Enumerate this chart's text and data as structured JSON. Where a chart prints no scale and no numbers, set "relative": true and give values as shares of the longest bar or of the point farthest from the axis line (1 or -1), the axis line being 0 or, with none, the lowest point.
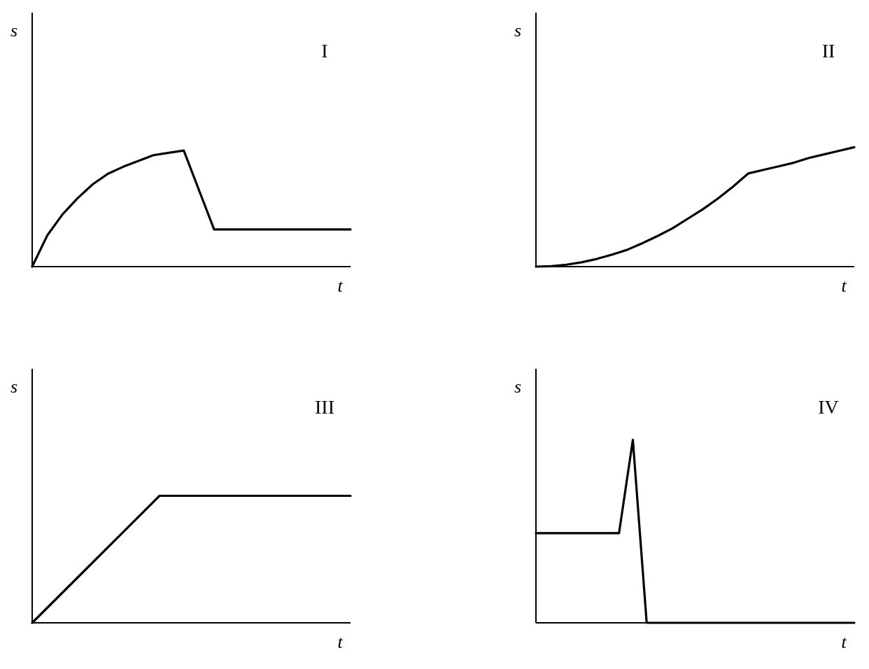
{
  "chart_data": [
    {
      "type": "line",
      "title": "I",
      "xlabel": "t",
      "ylabel": "s",
      "relative": true,
      "color": "#000000",
      "categories": [
        null,
        null,
        null,
        null,
        null,
        null,
        null,
        null,
        null,
        null,
        null,
        null,
        null,
        null,
        null,
        null,
        null,
        null,
        null,
        null,
        null,
        null
      ],
      "values": [
        0,
        0.27,
        0.45,
        0.59,
        0.71,
        0.8,
        0.86,
        0.91,
        0.96,
        0.98,
        1,
        0.66,
        0.32,
        0.32,
        0.32,
        0.32,
        0.32,
        0.32,
        0.32,
        0.32,
        0.32,
        0.32
      ]
    },
    {
      "type": "line",
      "title": "II",
      "xlabel": "t",
      "ylabel": "s",
      "relative": true,
      "color": "#000000",
      "categories": [
        null,
        null,
        null,
        null,
        null,
        null,
        null,
        null,
        null,
        null,
        null,
        null,
        null,
        null,
        null,
        null,
        null,
        null,
        null,
        null,
        null,
        null
      ],
      "values": [
        0,
        0.004,
        0.016,
        0.036,
        0.064,
        0.1,
        0.14,
        0.195,
        0.255,
        0.32,
        0.4,
        0.48,
        0.57,
        0.67,
        0.78,
        0.81,
        0.84,
        0.87,
        0.91,
        0.94,
        0.97,
        1
      ]
    },
    {
      "type": "line",
      "title": "III",
      "xlabel": "t",
      "ylabel": "s",
      "relative": true,
      "color": "#000000",
      "categories": [
        null,
        null,
        null,
        null,
        null,
        null
      ],
      "values": [
        0,
        0.5,
        1,
        1,
        1,
        1
      ]
    },
    {
      "type": "line",
      "title": "IV",
      "xlabel": "t",
      "ylabel": "s",
      "relative": true,
      "color": "#000000",
      "categories": [
        null,
        null,
        null,
        null,
        null,
        null,
        null,
        null,
        null,
        null,
        null,
        null,
        null,
        null,
        null,
        null,
        null,
        null,
        null,
        null,
        null,
        null,
        null,
        null
      ],
      "values": [
        0.49,
        0.49,
        0.49,
        0.49,
        0.49,
        0.49,
        0.49,
        1,
        0,
        0,
        0,
        0,
        0,
        0,
        0,
        0,
        0,
        0,
        0,
        0,
        0,
        0,
        0,
        0
      ]
    }
  ]
}
